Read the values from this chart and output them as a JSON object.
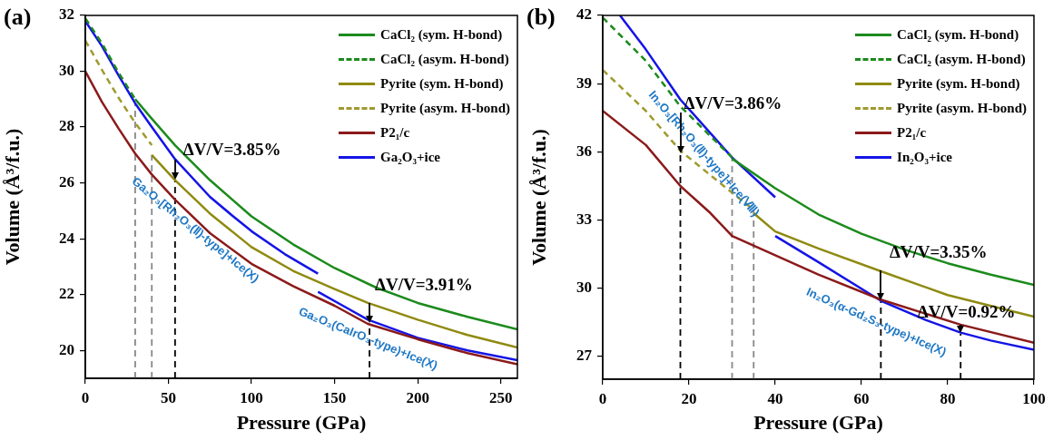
{
  "chart_data": [
    {
      "type": "line",
      "title": "(a)",
      "xlabel": "Pressure (GPa)",
      "ylabel": "Volume (Å³/f.u.)",
      "xlim": [
        0,
        260
      ],
      "ylim": [
        19,
        32
      ],
      "xticks": [
        0,
        50,
        100,
        150,
        200,
        250
      ],
      "yticks": [
        20,
        22,
        24,
        26,
        28,
        30,
        32
      ],
      "legend": "top right",
      "grid": false,
      "series": [
        {
          "name": "CaCl₂ (sym. H-bond)",
          "color": "#1c8a1c",
          "line_style": "solid",
          "x": [
            30,
            40,
            54,
            75,
            100,
            125,
            150,
            175,
            200,
            230,
            260
          ],
          "values": [
            29.0,
            28.3,
            27.35,
            26.1,
            24.8,
            23.8,
            22.95,
            22.25,
            21.7,
            21.2,
            20.75
          ]
        },
        {
          "name": "CaCl₂ (asym. H-bond)",
          "color": "#1c8a1c",
          "line_style": "dashed",
          "x": [
            0,
            10,
            20,
            30
          ],
          "values": [
            31.9,
            31.0,
            29.95,
            29.0
          ]
        },
        {
          "name": "Pyrite (sym. H-bond)",
          "color": "#8f8a10",
          "line_style": "solid",
          "x": [
            40,
            54,
            75,
            100,
            125,
            150,
            170,
            200,
            230,
            260
          ],
          "values": [
            27.0,
            26.1,
            24.9,
            23.7,
            22.85,
            22.2,
            21.7,
            21.1,
            20.55,
            20.1
          ]
        },
        {
          "name": "Pyrite (asym. H-bond)",
          "color": "#a09a30",
          "line_style": "dashed",
          "x": [
            0,
            10,
            20,
            30,
            40
          ],
          "values": [
            31.1,
            30.05,
            29.05,
            28.15,
            27.35
          ]
        },
        {
          "name": "P2₁/c",
          "color": "#8b1a1a",
          "line_style": "solid",
          "x": [
            0,
            10,
            20,
            30,
            40,
            54,
            75,
            100,
            125,
            150,
            170,
            200,
            230,
            260
          ],
          "values": [
            30.0,
            28.9,
            27.95,
            27.05,
            26.3,
            25.4,
            24.2,
            23.1,
            22.3,
            21.6,
            20.95,
            20.4,
            19.9,
            19.5
          ]
        },
        {
          "name": "Ga₂O₃+ice",
          "color": "#1414e6",
          "line_style": "solid",
          "x": [
            0,
            10,
            20,
            30,
            40,
            54,
            75,
            90,
            100,
            120,
            140,
            140,
            155,
            170,
            200,
            230,
            260
          ],
          "values": [
            31.8,
            30.9,
            29.85,
            28.85,
            28.0,
            26.85,
            25.5,
            24.75,
            24.27,
            23.45,
            22.75,
            22.1,
            21.6,
            21.1,
            20.45,
            20.0,
            19.65
          ]
        },
        {
          "color": "#888888",
          "line_style": "dashed",
          "x": [
            30,
            30
          ],
          "values": [
            19,
            28.85
          ]
        },
        {
          "color": "#888888",
          "line_style": "dashed",
          "x": [
            40,
            40
          ],
          "values": [
            19,
            27.0
          ]
        },
        {
          "color": "#000000",
          "line_style": "dashed",
          "x": [
            54,
            54
          ],
          "values": [
            19,
            26.1
          ]
        },
        {
          "color": "#000000",
          "line_style": "dashed",
          "x": [
            171,
            171
          ],
          "values": [
            19,
            20.95
          ]
        }
      ],
      "annotations": [
        {
          "text": "ΔV/V=3.85%",
          "x": 54,
          "y": 26.1
        },
        {
          "text": "ΔV/V=3.91%",
          "x": 171,
          "y": 20.95
        },
        "Ga₂O₃[Rh₂O₃(Ⅱ)-type]+Ice(X)",
        "Ga₂O₃(CaIrO₃-type)+Ice(X)"
      ]
    },
    {
      "type": "line",
      "title": "(b)",
      "xlabel": "Pressure (GPa)",
      "ylabel": "Volume (Å³/f.u.)",
      "xlim": [
        0,
        100
      ],
      "ylim": [
        26,
        42
      ],
      "xticks": [
        0,
        20,
        40,
        60,
        80,
        100
      ],
      "yticks": [
        27,
        30,
        33,
        36,
        39,
        42
      ],
      "legend": "top right",
      "grid": false,
      "series": [
        {
          "name": "CaCl₂ (sym. H-bond)",
          "color": "#1c8a1c",
          "line_style": "solid",
          "x": [
            30,
            40,
            50,
            60,
            70,
            80,
            90,
            100
          ],
          "values": [
            35.7,
            34.4,
            33.25,
            32.4,
            31.7,
            31.1,
            30.6,
            30.15
          ]
        },
        {
          "name": "CaCl₂ (asym. H-bond)",
          "color": "#1c8a1c",
          "line_style": "dashed",
          "x": [
            0,
            10,
            18,
            30
          ],
          "values": [
            41.9,
            40.0,
            38.0,
            35.75
          ]
        },
        {
          "name": "Pyrite (sym. H-bond)",
          "color": "#8f8a10",
          "line_style": "solid",
          "x": [
            35,
            40,
            50,
            64.5,
            80,
            100
          ],
          "values": [
            33.3,
            32.5,
            31.75,
            30.75,
            29.7,
            28.75
          ]
        },
        {
          "name": "Pyrite (asym. H-bond)",
          "color": "#a09a30",
          "line_style": "dashed",
          "x": [
            0,
            10,
            18,
            30,
            35
          ],
          "values": [
            39.6,
            37.8,
            36.05,
            34.2,
            33.45
          ]
        },
        {
          "name": "P2₁/c",
          "color": "#8b1a1a",
          "line_style": "solid",
          "x": [
            0,
            10,
            18,
            25,
            30,
            40,
            50,
            64.5,
            83,
            100
          ],
          "values": [
            37.8,
            36.3,
            34.5,
            33.3,
            32.3,
            31.45,
            30.6,
            29.5,
            28.4,
            27.6
          ]
        },
        {
          "name": "In₂O₃+ice",
          "color": "#1414e6",
          "line_style": "solid",
          "x": [
            4,
            10,
            18,
            30,
            40,
            40,
            50,
            64.5,
            75,
            83,
            90,
            100
          ],
          "values": [
            42.0,
            40.5,
            38.3,
            35.75,
            34.0,
            32.3,
            31.15,
            29.45,
            28.6,
            28.05,
            27.7,
            27.3
          ]
        },
        {
          "color": "#000000",
          "line_style": "dashed",
          "x": [
            18,
            18
          ],
          "values": [
            26,
            35.9
          ]
        },
        {
          "color": "#888888",
          "line_style": "dashed",
          "x": [
            30,
            30
          ],
          "values": [
            26,
            35.75
          ]
        },
        {
          "color": "#888888",
          "line_style": "dashed",
          "x": [
            35,
            35
          ],
          "values": [
            26,
            33.45
          ]
        },
        {
          "color": "#000000",
          "line_style": "dashed",
          "x": [
            64.5,
            64.5
          ],
          "values": [
            26,
            29.45
          ]
        },
        {
          "color": "#000000",
          "line_style": "dashed",
          "x": [
            83,
            83
          ],
          "values": [
            26,
            28.0
          ]
        }
      ],
      "annotations": [
        {
          "text": "ΔV/V=3.86%",
          "x": 18,
          "y": 35.9
        },
        {
          "text": "ΔV/V=3.35%",
          "x": 64.5,
          "y": 29.45
        },
        {
          "text": "ΔV/V=0.92%",
          "x": 83,
          "y": 28.0
        },
        "In₂O₃[Rh₂O₃(Ⅱ)-type]+Ice(Ⅷ)",
        "In₂O₃(α-Gd₂S₃-type)+Ice(X)"
      ]
    }
  ]
}
